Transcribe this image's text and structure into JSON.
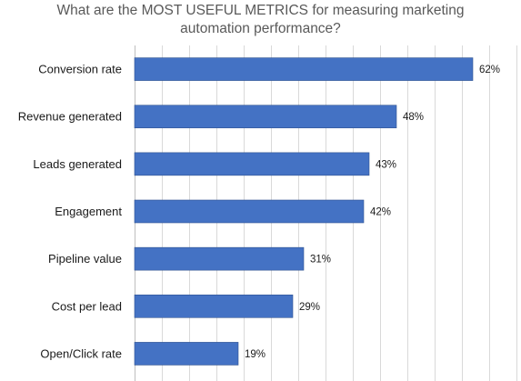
{
  "chart_data": {
    "type": "bar",
    "orientation": "horizontal",
    "title_lines": [
      "What are the MOST USEFUL METRICS for measuring marketing",
      "automation performance?"
    ],
    "categories": [
      "Conversion rate",
      "Revenue generated",
      "Leads generated",
      "Engagement",
      "Pipeline value",
      "Cost per lead",
      "Open/Click rate"
    ],
    "values": [
      62,
      48,
      43,
      42,
      31,
      29,
      19
    ],
    "value_labels": [
      "62%",
      "48%",
      "43%",
      "42%",
      "31%",
      "29%",
      "19%"
    ],
    "xlim": [
      0,
      70
    ],
    "grid": true,
    "legend": "none",
    "bar_color": "#4472c4"
  }
}
